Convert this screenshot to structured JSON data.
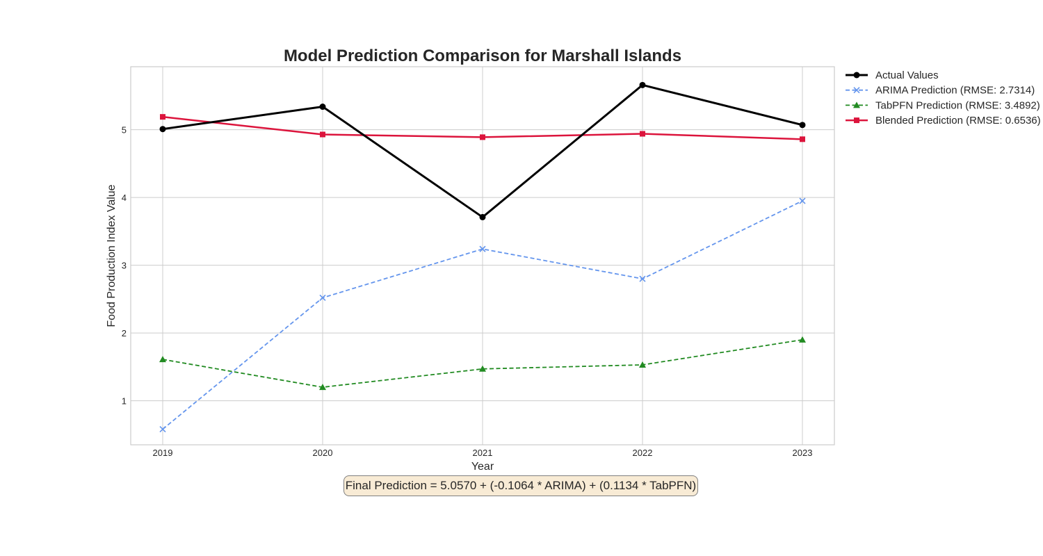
{
  "chart_data": {
    "type": "line",
    "title": "Model Prediction Comparison for Marshall Islands",
    "xlabel": "Year",
    "ylabel": "Food Production Index Value",
    "x": [
      "2019",
      "2020",
      "2021",
      "2022",
      "2023"
    ],
    "xlim": [
      2018.8,
      2023.2
    ],
    "ylim": [
      0.35,
      5.93
    ],
    "yticks": [
      "1",
      "2",
      "3",
      "4",
      "5"
    ],
    "grid": true,
    "legend_position": "outside-top-right",
    "series": [
      {
        "name": "Actual Values",
        "values": [
          5.01,
          5.34,
          3.71,
          5.66,
          5.07
        ],
        "color": "#000000",
        "marker": "circle",
        "line_style": "solid"
      },
      {
        "name": "ARIMA Prediction (RMSE: 2.7314)",
        "values": [
          0.58,
          2.52,
          3.24,
          2.8,
          3.95
        ],
        "color": "#6495ed",
        "marker": "x",
        "line_style": "dashed"
      },
      {
        "name": "TabPFN Prediction (RMSE: 3.4892)",
        "values": [
          1.61,
          1.2,
          1.47,
          1.53,
          1.9
        ],
        "color": "#228b22",
        "marker": "triangle",
        "line_style": "dashed"
      },
      {
        "name": "Blended Prediction (RMSE: 0.6536)",
        "values": [
          5.19,
          4.93,
          4.89,
          4.94,
          4.86
        ],
        "color": "#dc143c",
        "marker": "square",
        "line_style": "solid"
      }
    ],
    "annotation": "Final Prediction = 5.0570 + (-0.1064 * ARIMA) + (0.1134 * TabPFN)"
  }
}
